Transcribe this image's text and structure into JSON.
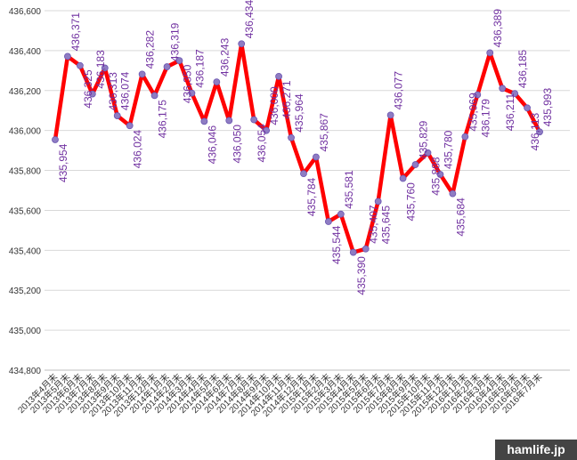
{
  "chart_data": {
    "type": "line",
    "categories": [
      "2013年4月末",
      "2013年5月末",
      "2013年6月末",
      "2013年7月末",
      "2013年8月末",
      "2013年9月末",
      "2013年10月末",
      "2013年11月末",
      "2013年12月末",
      "2014年1月末",
      "2014年2月末",
      "2014年3月末",
      "2014年4月末",
      "2014年5月末",
      "2014年6月末",
      "2014年7月末",
      "2014年8月末",
      "2014年9月末",
      "2014年10月末",
      "2014年11月末",
      "2014年12月末",
      "2015年1月末",
      "2015年2月末",
      "2015年3月末",
      "2015年4月末",
      "2015年5月末",
      "2015年6月末",
      "2015年7月末",
      "2015年8月末",
      "2015年9月末",
      "2015年10月末",
      "2015年11月末",
      "2015年12月末",
      "2016年1月末",
      "2016年2月末",
      "2016年3月末",
      "2016年4月末",
      "2016年5月末",
      "2016年6月末",
      "2016年7月末"
    ],
    "series": [
      {
        "color": "#ff0000",
        "marker_color": "#8e7cc3",
        "values": [
          435954,
          436371,
          436325,
          436183,
          436313,
          436074,
          436024,
          436282,
          436175,
          436319,
          436350,
          436187,
          436046,
          436243,
          436050,
          436434,
          436054,
          436000,
          436271,
          435964,
          435784,
          435867,
          435544,
          435581,
          435390,
          435407,
          435645,
          436077,
          435760,
          435829,
          435888,
          435780,
          435684,
          435969,
          436179,
          436389,
          436211,
          436185,
          436113,
          435993
        ],
        "value_labels": [
          "435,954",
          "436,371",
          "436,325",
          "436,183",
          "436,313",
          "436,074",
          "436,024",
          "436,282",
          "436,175",
          "436,319",
          "436,350",
          "436,187",
          "436,046",
          "436,243",
          "436,050",
          "436,434",
          "436,054",
          "436,000",
          "436,271",
          "435,964",
          "435,784",
          "435,867",
          "435,544",
          "435,581",
          "435,390",
          "435,407",
          "435,645",
          "436,077",
          "435,760",
          "435,829",
          "435,888",
          "435,780",
          "435,684",
          "435,969",
          "436,179",
          "436,389",
          "436,211",
          "436,185",
          "436,113",
          "435,993"
        ]
      }
    ],
    "ylim": [
      434800,
      436600
    ],
    "yticks": [
      {
        "value": 434800,
        "label": "434,800"
      },
      {
        "value": 435000,
        "label": "435,000"
      },
      {
        "value": 435200,
        "label": "435,200"
      },
      {
        "value": 435400,
        "label": "435,400"
      },
      {
        "value": 435600,
        "label": "435,600"
      },
      {
        "value": 435800,
        "label": "435,800"
      },
      {
        "value": 436000,
        "label": "436,000"
      },
      {
        "value": 436200,
        "label": "436,200"
      },
      {
        "value": 436400,
        "label": "436,400"
      },
      {
        "value": 436600,
        "label": "436,600"
      }
    ],
    "grid": true
  },
  "watermark": "hamlife.jp"
}
